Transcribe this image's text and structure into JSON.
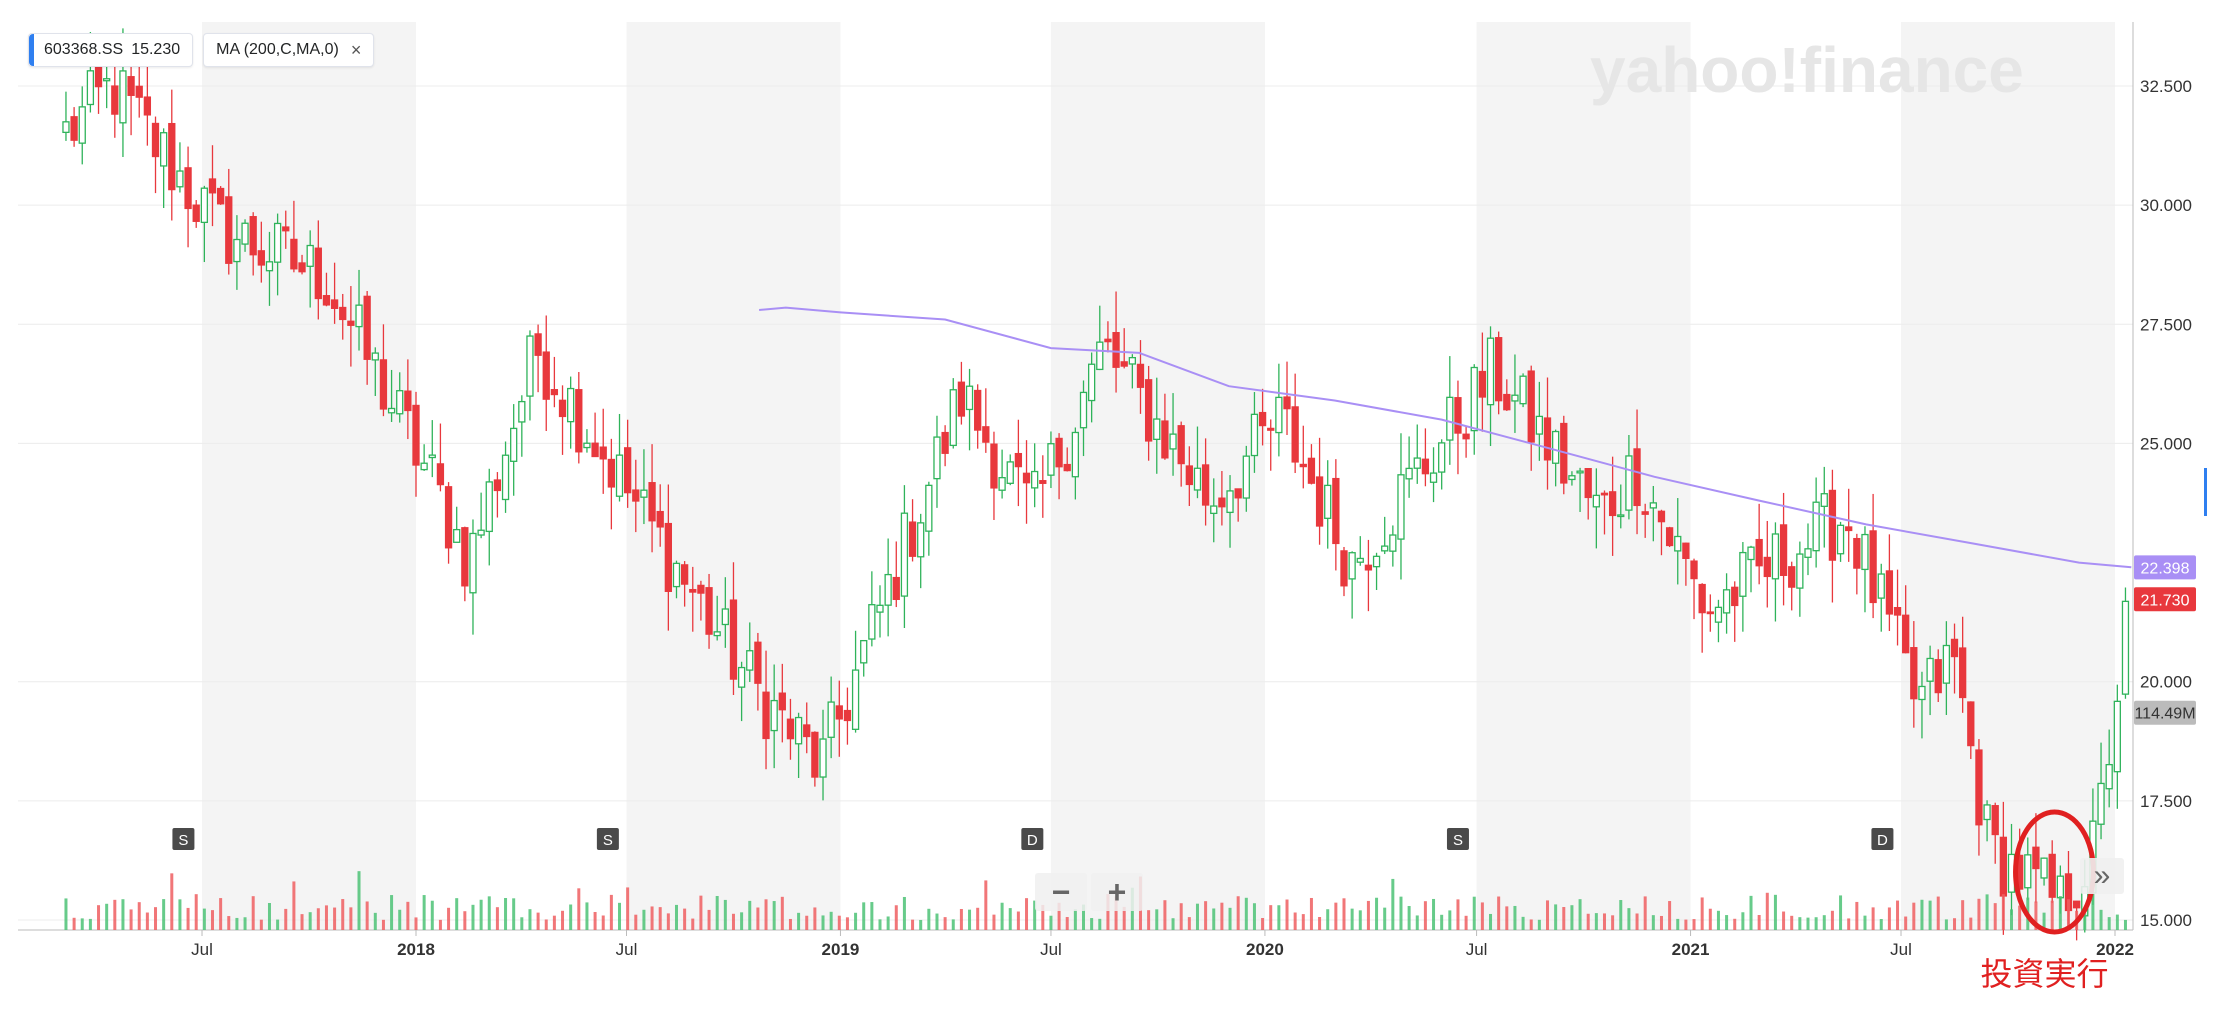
{
  "legend": {
    "symbol": "603368.SS",
    "price": "15.230",
    "indicator": "MA (200,C,MA,0)",
    "close_glyph": "×"
  },
  "watermark": "yahoo!finance",
  "zoom": {
    "minus": "−",
    "plus": "+"
  },
  "scroll_glyph": "»",
  "annotation": {
    "label": "投資実行",
    "color": "#e02020"
  },
  "colors": {
    "up": "#2fb35a",
    "down": "#e8383d",
    "ma": "#a98ff5",
    "volume_up": "#4cc275",
    "volume_down": "#ef5e60"
  },
  "chart_data": {
    "type": "candlestick",
    "y_axis": {
      "ticks": [
        "32.500",
        "30.000",
        "27.500",
        "25.000",
        "20.000",
        "17.500",
        "15.000"
      ],
      "min": 15.0,
      "max": 33.5,
      "position": "right"
    },
    "price_labels": [
      {
        "value": "22.398",
        "price": 22.398,
        "color": "#a98ff5"
      },
      {
        "value": "21.730",
        "price": 21.73,
        "color": "#e8383d"
      },
      {
        "value": "114.49M",
        "price": 19.35,
        "color": "#bbbbbb"
      }
    ],
    "x_axis": {
      "ticks": [
        {
          "label": "Jul",
          "bold": false,
          "date": "2017-07"
        },
        {
          "label": "2018",
          "bold": true,
          "date": "2018-01"
        },
        {
          "label": "Jul",
          "bold": false,
          "date": "2018-07"
        },
        {
          "label": "2019",
          "bold": true,
          "date": "2019-01"
        },
        {
          "label": "Jul",
          "bold": false,
          "date": "2019-07"
        },
        {
          "label": "2020",
          "bold": true,
          "date": "2020-01"
        },
        {
          "label": "Jul",
          "bold": false,
          "date": "2020-07"
        },
        {
          "label": "2021",
          "bold": true,
          "date": "2021-01"
        },
        {
          "label": "Jul",
          "bold": false,
          "date": "2021-07"
        },
        {
          "label": "2022",
          "bold": true,
          "date": "2022-01"
        }
      ]
    },
    "events": [
      {
        "label": "S",
        "date": "2017-06"
      },
      {
        "label": "S",
        "date": "2018-06"
      },
      {
        "label": "D",
        "date": "2019-06"
      },
      {
        "label": "S",
        "date": "2020-06"
      },
      {
        "label": "D",
        "date": "2021-06"
      }
    ],
    "series": [
      {
        "label": "moving average 200",
        "dates": [
          "2018-10-23",
          "2018-11-15",
          "2019-01-01",
          "2019-04-01",
          "2019-07-01",
          "2019-09-15",
          "2019-12-01",
          "2020-03-01",
          "2020-06-01",
          "2020-09-01",
          "2020-12-01",
          "2021-03-01",
          "2021-06-01",
          "2021-09-01",
          "2021-12-01",
          "2022-01-15"
        ],
        "values": [
          27.8,
          27.85,
          27.75,
          27.6,
          27.0,
          26.9,
          26.2,
          25.9,
          25.5,
          24.9,
          24.3,
          23.8,
          23.3,
          22.9,
          22.5,
          22.4
        ]
      }
    ],
    "key_points": [
      {
        "date": "2017-04",
        "price": 32.5
      },
      {
        "date": "2017-07",
        "price": 29.5
      },
      {
        "date": "2017-10",
        "price": 28.5
      },
      {
        "date": "2018-01",
        "price": 24.2
      },
      {
        "date": "2018-02",
        "price": 22.5
      },
      {
        "date": "2018-04",
        "price": 27.0
      },
      {
        "date": "2018-07",
        "price": 23.5
      },
      {
        "date": "2018-10",
        "price": 20.0
      },
      {
        "date": "2018-12",
        "price": 18.2
      },
      {
        "date": "2019-04",
        "price": 26.0
      },
      {
        "date": "2019-06",
        "price": 23.5
      },
      {
        "date": "2019-08",
        "price": 27.0
      },
      {
        "date": "2019-11",
        "price": 23.8
      },
      {
        "date": "2020-01",
        "price": 25.5
      },
      {
        "date": "2020-03",
        "price": 22.5
      },
      {
        "date": "2020-07",
        "price": 26.5
      },
      {
        "date": "2020-10",
        "price": 23.5
      },
      {
        "date": "2020-11",
        "price": 24.5
      },
      {
        "date": "2021-01",
        "price": 21.5
      },
      {
        "date": "2021-05",
        "price": 23.5
      },
      {
        "date": "2021-07",
        "price": 19.5
      },
      {
        "date": "2021-08",
        "price": 20.5
      },
      {
        "date": "2021-09",
        "price": 16.5
      },
      {
        "date": "2021-11",
        "price": 15.3
      },
      {
        "date": "2021-12",
        "price": 16.5
      },
      {
        "date": "2022-01",
        "price": 22.0
      }
    ]
  }
}
